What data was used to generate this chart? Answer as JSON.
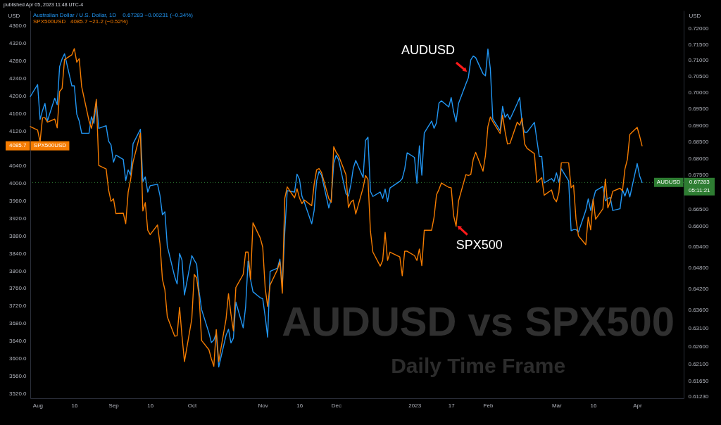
{
  "chart_data": {
    "type": "line",
    "title": "AUDUSD vs SPX500",
    "subtitle": "Daily Time Frame",
    "ylabel": "USD",
    "y2label": "USD",
    "legend": "top left",
    "log": "y2",
    "x": [
      "2022-07-29",
      "2022-08-01",
      "2022-08-02",
      "2022-08-03",
      "2022-08-04",
      "2022-08-05",
      "2022-08-08",
      "2022-08-09",
      "2022-08-10",
      "2022-08-11",
      "2022-08-12",
      "2022-08-15",
      "2022-08-16",
      "2022-08-17",
      "2022-08-18",
      "2022-08-19",
      "2022-08-22",
      "2022-08-23",
      "2022-08-24",
      "2022-08-25",
      "2022-08-26",
      "2022-08-29",
      "2022-08-30",
      "2022-08-31",
      "2022-09-01",
      "2022-09-02",
      "2022-09-05",
      "2022-09-06",
      "2022-09-07",
      "2022-09-08",
      "2022-09-09",
      "2022-09-12",
      "2022-09-13",
      "2022-09-14",
      "2022-09-15",
      "2022-09-16",
      "2022-09-19",
      "2022-09-20",
      "2022-09-21",
      "2022-09-22",
      "2022-09-23",
      "2022-09-26",
      "2022-09-27",
      "2022-09-28",
      "2022-09-29",
      "2022-09-30",
      "2022-10-03",
      "2022-10-04",
      "2022-10-05",
      "2022-10-06",
      "2022-10-07",
      "2022-10-10",
      "2022-10-11",
      "2022-10-12",
      "2022-10-13",
      "2022-10-14",
      "2022-10-17",
      "2022-10-18",
      "2022-10-19",
      "2022-10-20",
      "2022-10-21",
      "2022-10-24",
      "2022-10-25",
      "2022-10-26",
      "2022-10-27",
      "2022-10-28",
      "2022-10-31",
      "2022-11-01",
      "2022-11-02",
      "2022-11-03",
      "2022-11-04",
      "2022-11-07",
      "2022-11-08",
      "2022-11-09",
      "2022-11-10",
      "2022-11-11",
      "2022-11-14",
      "2022-11-15",
      "2022-11-16",
      "2022-11-17",
      "2022-11-18",
      "2022-11-21",
      "2022-11-22",
      "2022-11-23",
      "2022-11-24",
      "2022-11-25",
      "2022-11-28",
      "2022-11-29",
      "2022-11-30",
      "2022-12-01",
      "2022-12-02",
      "2022-12-05",
      "2022-12-06",
      "2022-12-07",
      "2022-12-08",
      "2022-12-09",
      "2022-12-12",
      "2022-12-13",
      "2022-12-14",
      "2022-12-15",
      "2022-12-16",
      "2022-12-19",
      "2022-12-20",
      "2022-12-21",
      "2022-12-22",
      "2022-12-23",
      "2022-12-27",
      "2022-12-28",
      "2022-12-29",
      "2022-12-30",
      "2023-01-02",
      "2023-01-03",
      "2023-01-04",
      "2023-01-05",
      "2023-01-06",
      "2023-01-09",
      "2023-01-10",
      "2023-01-11",
      "2023-01-12",
      "2023-01-13",
      "2023-01-16",
      "2023-01-17",
      "2023-01-18",
      "2023-01-19",
      "2023-01-20",
      "2023-01-23",
      "2023-01-24",
      "2023-01-25",
      "2023-01-26",
      "2023-01-27",
      "2023-01-30",
      "2023-01-31",
      "2023-02-01",
      "2023-02-02",
      "2023-02-03",
      "2023-02-06",
      "2023-02-07",
      "2023-02-08",
      "2023-02-09",
      "2023-02-10",
      "2023-02-13",
      "2023-02-14",
      "2023-02-15",
      "2023-02-16",
      "2023-02-17",
      "2023-02-20",
      "2023-02-21",
      "2023-02-22",
      "2023-02-23",
      "2023-02-24",
      "2023-02-27",
      "2023-02-28",
      "2023-03-01",
      "2023-03-02",
      "2023-03-03",
      "2023-03-06",
      "2023-03-07",
      "2023-03-08",
      "2023-03-09",
      "2023-03-10",
      "2023-03-13",
      "2023-03-14",
      "2023-03-15",
      "2023-03-16",
      "2023-03-17",
      "2023-03-20",
      "2023-03-21",
      "2023-03-22",
      "2023-03-23",
      "2023-03-24",
      "2023-03-27",
      "2023-03-28",
      "2023-03-29",
      "2023-03-30",
      "2023-03-31",
      "2023-04-03",
      "2023-04-04",
      "2023-04-05"
    ],
    "series": [
      {
        "name": "Australian Dollar / U.S. Dollar, 1D",
        "color": "#2196f3",
        "axis": "y2",
        "values": [
          0.6988,
          0.7025,
          0.6918,
          0.6945,
          0.6967,
          0.6913,
          0.6983,
          0.6963,
          0.7081,
          0.7105,
          0.7121,
          0.7021,
          0.7021,
          0.6934,
          0.6913,
          0.6876,
          0.6876,
          0.6926,
          0.6906,
          0.6972,
          0.6891,
          0.6899,
          0.6852,
          0.6841,
          0.6789,
          0.681,
          0.6797,
          0.6734,
          0.6766,
          0.675,
          0.6844,
          0.6888,
          0.6731,
          0.6745,
          0.67,
          0.6719,
          0.6723,
          0.669,
          0.6633,
          0.6642,
          0.6542,
          0.6455,
          0.6434,
          0.6521,
          0.6502,
          0.6403,
          0.6515,
          0.6502,
          0.649,
          0.6412,
          0.6362,
          0.6297,
          0.627,
          0.6277,
          0.6296,
          0.6203,
          0.629,
          0.6307,
          0.6269,
          0.6282,
          0.6383,
          0.6311,
          0.637,
          0.6499,
          0.6447,
          0.6412,
          0.6395,
          0.6392,
          0.6342,
          0.6285,
          0.647,
          0.6479,
          0.6505,
          0.6429,
          0.6583,
          0.6704,
          0.67,
          0.6753,
          0.6738,
          0.6688,
          0.667,
          0.6607,
          0.6646,
          0.6733,
          0.6761,
          0.675,
          0.6653,
          0.6681,
          0.6785,
          0.681,
          0.6796,
          0.6695,
          0.6688,
          0.6722,
          0.6771,
          0.6794,
          0.6743,
          0.6854,
          0.6864,
          0.6702,
          0.6687,
          0.67,
          0.6681,
          0.6709,
          0.6672,
          0.6712,
          0.6732,
          0.674,
          0.6768,
          0.6817,
          0.6803,
          0.6726,
          0.6838,
          0.675,
          0.6877,
          0.6913,
          0.6891,
          0.6908,
          0.6968,
          0.6975,
          0.6956,
          0.6985,
          0.6941,
          0.6911,
          0.6967,
          0.7027,
          0.7046,
          0.7102,
          0.7114,
          0.7109,
          0.7059,
          0.7052,
          0.7136,
          0.7074,
          0.692,
          0.6884,
          0.6958,
          0.6924,
          0.6934,
          0.6918,
          0.6967,
          0.6985,
          0.6902,
          0.6879,
          0.6879,
          0.6909,
          0.6856,
          0.6806,
          0.6806,
          0.6727,
          0.674,
          0.6731,
          0.6757,
          0.6729,
          0.6769,
          0.6733,
          0.6587,
          0.659,
          0.659,
          0.6583,
          0.6646,
          0.668,
          0.6646,
          0.6677,
          0.6704,
          0.6717,
          0.6674,
          0.6681,
          0.6684,
          0.6646,
          0.6651,
          0.6707,
          0.6688,
          0.6712,
          0.6686,
          0.6785,
          0.6748,
          0.67283
        ]
      },
      {
        "name": "SPX500USD",
        "color": "#f57c00",
        "axis": "y",
        "values": [
          4130,
          4122,
          4095,
          4150,
          4150,
          4140,
          4147,
          4127,
          4210,
          4217,
          4283,
          4294,
          4308,
          4277,
          4285,
          4221,
          4143,
          4126,
          4154,
          4192,
          4041,
          4033,
          3985,
          3959,
          3965,
          3931,
          3932,
          3908,
          3980,
          4009,
          4049,
          4115,
          3937,
          3956,
          3893,
          3883,
          3905,
          3862,
          3781,
          3757,
          3695,
          3651,
          3652,
          3717,
          3651,
          3593,
          3690,
          3792,
          3784,
          3741,
          3641,
          3620,
          3599,
          3582,
          3666,
          3593,
          3690,
          3748,
          3701,
          3663,
          3762,
          3792,
          3843,
          3843,
          3781,
          3910,
          3875,
          3854,
          3760,
          3719,
          3768,
          3803,
          3821,
          3749,
          3966,
          3992,
          3967,
          3988,
          3967,
          3954,
          3962,
          3949,
          3998,
          4031,
          4034,
          4025,
          3965,
          3957,
          4084,
          4071,
          4063,
          4020,
          3945,
          3957,
          3962,
          3930,
          3990,
          4018,
          4009,
          3891,
          3843,
          3811,
          3824,
          3888,
          3824,
          3843,
          3832,
          3789,
          3845,
          3845,
          3835,
          3824,
          3850,
          3812,
          3893,
          3893,
          3923,
          3974,
          3986,
          4001,
          3991,
          3990,
          3926,
          3902,
          3960,
          4020,
          4018,
          4020,
          4055,
          4071,
          4028,
          4064,
          4130,
          4152,
          4141,
          4114,
          4156,
          4119,
          4090,
          4091,
          4140,
          4133,
          4149,
          4090,
          4080,
          4068,
          4002,
          4008,
          4013,
          3973,
          3985,
          3966,
          3958,
          3979,
          4047,
          4047,
          3990,
          3996,
          3918,
          3880,
          3860,
          3923,
          3894,
          3964,
          3918,
          3942,
          4010,
          3944,
          3959,
          3982,
          3989,
          3983,
          4033,
          4055,
          4112,
          4128,
          4108,
          4085.7
        ]
      }
    ],
    "xlim": [
      "2022-07-29",
      "2023-04-22"
    ],
    "xticks": [
      {
        "value": "2022-08-01",
        "label": "Aug"
      },
      {
        "value": "2022-08-16",
        "label": "16"
      },
      {
        "value": "2022-09-01",
        "label": "Sep"
      },
      {
        "value": "2022-09-16",
        "label": "16"
      },
      {
        "value": "2022-10-03",
        "label": "Oct"
      },
      {
        "value": "2022-11-01",
        "label": "Nov"
      },
      {
        "value": "2022-11-16",
        "label": "16"
      },
      {
        "value": "2022-12-01",
        "label": "Dec"
      },
      {
        "value": "2023-01-02",
        "label": "2023"
      },
      {
        "value": "2023-01-17",
        "label": "17"
      },
      {
        "value": "2023-02-01",
        "label": "Feb"
      },
      {
        "value": "2023-03-01",
        "label": "Mar"
      },
      {
        "value": "2023-03-16",
        "label": "16"
      },
      {
        "value": "2023-04-03",
        "label": "Apr"
      }
    ],
    "ylim": [
      3509,
      4395
    ],
    "yticks": [
      {
        "value": 3520,
        "label": "3520.0"
      },
      {
        "value": 3560,
        "label": "3560.0"
      },
      {
        "value": 3600,
        "label": "3600.0"
      },
      {
        "value": 3640,
        "label": "3640.0"
      },
      {
        "value": 3680,
        "label": "3680.0"
      },
      {
        "value": 3720,
        "label": "3720.0"
      },
      {
        "value": 3760,
        "label": "3760.0"
      },
      {
        "value": 3800,
        "label": "3800.0"
      },
      {
        "value": 3840,
        "label": "3840.0"
      },
      {
        "value": 3880,
        "label": "3880.0"
      },
      {
        "value": 3920,
        "label": "3920.0"
      },
      {
        "value": 3960,
        "label": "3960.0"
      },
      {
        "value": 4000,
        "label": "4000.0"
      },
      {
        "value": 4040,
        "label": "4040.0"
      },
      {
        "value": 4120,
        "label": "4120.0"
      },
      {
        "value": 4160,
        "label": "4160.0"
      },
      {
        "value": 4200,
        "label": "4200.0"
      },
      {
        "value": 4240,
        "label": "4240.0"
      },
      {
        "value": 4280,
        "label": "4280.0"
      },
      {
        "value": 4320,
        "label": "4320.0"
      },
      {
        "value": 4360,
        "label": "4360.0"
      }
    ],
    "y2lim": [
      0.6118,
      0.7258
    ],
    "y2ticks": [
      {
        "value": 0.6123,
        "label": "0.61230"
      },
      {
        "value": 0.6165,
        "label": "0.61650"
      },
      {
        "value": 0.621,
        "label": "0.62100"
      },
      {
        "value": 0.626,
        "label": "0.62600"
      },
      {
        "value": 0.631,
        "label": "0.63100"
      },
      {
        "value": 0.636,
        "label": "0.63600"
      },
      {
        "value": 0.642,
        "label": "0.64200"
      },
      {
        "value": 0.648,
        "label": "0.64800"
      },
      {
        "value": 0.654,
        "label": "0.65400"
      },
      {
        "value": 0.66,
        "label": "0.66000"
      },
      {
        "value": 0.665,
        "label": "0.66500"
      },
      {
        "value": 0.675,
        "label": "0.67500"
      },
      {
        "value": 0.68,
        "label": "0.68000"
      },
      {
        "value": 0.685,
        "label": "0.68500"
      },
      {
        "value": 0.69,
        "label": "0.69000"
      },
      {
        "value": 0.695,
        "label": "0.69500"
      },
      {
        "value": 0.7,
        "label": "0.70000"
      },
      {
        "value": 0.705,
        "label": "0.70500"
      },
      {
        "value": 0.71,
        "label": "0.71000"
      },
      {
        "value": 0.715,
        "label": "0.71500"
      },
      {
        "value": 0.72,
        "label": "0.72000"
      }
    ],
    "ref_lines": [
      {
        "axis": "y2",
        "value": 0.67283,
        "label": "0.67283",
        "color": "#2e7d32",
        "line_style": "dotted"
      }
    ],
    "annotations": [
      "published Apr 05, 2023 11:48 UTC-4",
      "0.67283 −0.00231 (−0.34%)",
      "4085.7 −21.2 (−0.52%)",
      "AUDUSD",
      "SPX500USD",
      "05:11:21",
      "4085.7",
      "AUDUSD",
      {
        "text": "SPX500",
        "x": "2023-01-19",
        "y": 3902
      }
    ]
  }
}
